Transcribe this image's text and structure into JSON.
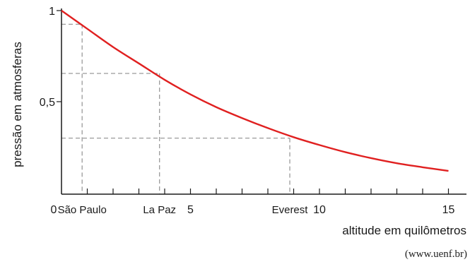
{
  "chart_data": {
    "type": "line",
    "xlabel": "altitude em quilômetros",
    "ylabel": "pressão em atmosferas",
    "xlim": [
      0,
      15.5
    ],
    "ylim": [
      0,
      1.02
    ],
    "x_ticks": [
      1,
      2,
      3,
      4,
      5,
      6,
      7,
      8,
      9,
      10,
      11,
      12,
      13,
      14,
      15
    ],
    "x_tick_labels": [
      {
        "x": 0,
        "label": "0"
      },
      {
        "x": 5,
        "label": "5"
      },
      {
        "x": 10,
        "label": "10"
      },
      {
        "x": 15,
        "label": "15"
      }
    ],
    "y_tick_labels": [
      {
        "y": 0.5,
        "label": "0,5"
      },
      {
        "y": 1,
        "label": "1"
      }
    ],
    "series": [
      {
        "color": "#e02020",
        "x": [
          0,
          1,
          2,
          3,
          4,
          5,
          6,
          7,
          8,
          9,
          10,
          11,
          12,
          13,
          14,
          15
        ],
        "y": [
          1.0,
          0.9,
          0.8,
          0.71,
          0.62,
          0.54,
          0.47,
          0.41,
          0.355,
          0.305,
          0.262,
          0.223,
          0.19,
          0.162,
          0.14,
          0.12
        ]
      }
    ],
    "annotations": [
      {
        "label": "São Paulo",
        "x": 0.8,
        "y": 0.925
      },
      {
        "label": "La Paz",
        "x": 3.8,
        "y": 0.655
      },
      {
        "label": "Everest",
        "x": 8.85,
        "y": 0.3
      }
    ],
    "guide_line_color": "#9a9a9a",
    "axis_color": "#1a1a1a"
  },
  "source": "(www.uenf.br)"
}
